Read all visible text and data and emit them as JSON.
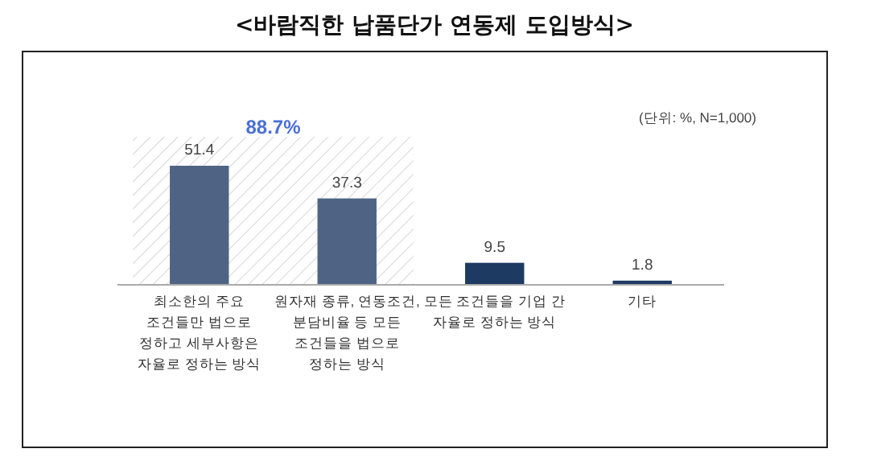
{
  "chart_data": {
    "type": "bar",
    "title": "<바람직한 납품단가 연동제 도입방식>",
    "categories": [
      "최소한의 주요 조건들만 법으로 정하고 세부사항은 자율로 정하는 방식",
      "원자재 종류, 연동조건, 분담비율 등 모든 조건들을 법으로 정하는 방식",
      "모든 조건들을 기업 간 자율로 정하는 방식",
      "기타"
    ],
    "values": [
      51.4,
      37.3,
      9.5,
      1.8
    ],
    "colors": [
      "#4f6485",
      "#4f6485",
      "#1d3a63",
      "#1d3a63"
    ],
    "data_labels": true,
    "annotations": [
      "(단위: %, N=1,000)",
      "88.7%"
    ]
  }
}
